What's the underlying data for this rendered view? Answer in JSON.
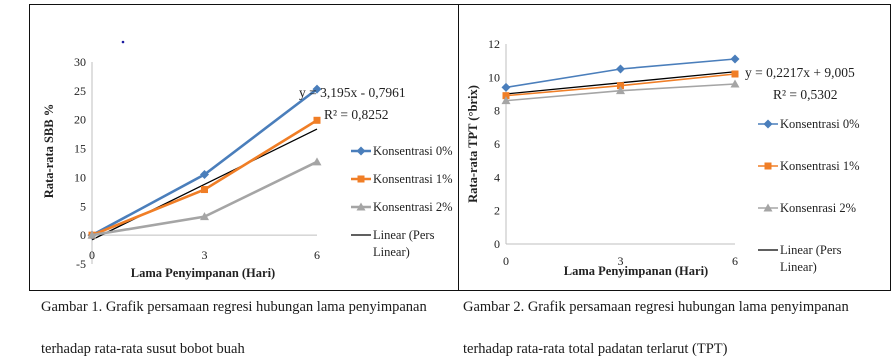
{
  "captions": {
    "fig1_line1": "Gambar 1. Grafik persamaan regresi hubungan lama penyimpanan",
    "fig1_line2": "terhadap rata-rata susut bobot buah",
    "fig2_line1": "Gambar 2. Grafik persamaan regresi hubungan lama penyimpanan",
    "fig2_line2": "terhadap rata-rata total padatan terlarut (TPT)"
  },
  "chart_data": [
    {
      "type": "line",
      "title": "",
      "xlabel": "Lama Penyimpanan (Hari)",
      "ylabel": "Rata-rata SBB %",
      "x": [
        0,
        3,
        6
      ],
      "ylim": [
        -5,
        30
      ],
      "yticks": [
        -5,
        0,
        5,
        10,
        15,
        20,
        25,
        30
      ],
      "grid": false,
      "legend_position": "right",
      "series": [
        {
          "name": "Konsentrasi 0%",
          "values": [
            0,
            10.5,
            25.3
          ],
          "color": "#4a7ebb",
          "marker": "diamond"
        },
        {
          "name": "Konsentrasi 1%",
          "values": [
            0,
            7.9,
            19.9
          ],
          "color": "#f07e26",
          "marker": "square"
        },
        {
          "name": "Konsentrasi 2%",
          "values": [
            0,
            3.2,
            12.7
          ],
          "color": "#a5a5a5",
          "marker": "triangle"
        }
      ],
      "trendline": {
        "name": "Linear (Pers Linear)",
        "name_lines": [
          "Linear (Pers",
          "Linear)"
        ],
        "slope": 3.195,
        "intercept": -0.7961,
        "color": "#000000"
      },
      "equation_text": "y = 3,195x - 0,7961",
      "r2_text": "R² = 0,8252"
    },
    {
      "type": "line",
      "title": "",
      "xlabel": "Lama Penyimpanan (Hari)",
      "ylabel": "Rata-rata TPT (°brix)",
      "x": [
        0,
        3,
        6
      ],
      "ylim": [
        0,
        12
      ],
      "yticks": [
        0,
        2,
        4,
        6,
        8,
        10,
        12
      ],
      "grid": false,
      "legend_position": "right",
      "series": [
        {
          "name": "Konsentrasi 0%",
          "values": [
            9.4,
            10.5,
            11.1
          ],
          "color": "#4a7ebb",
          "marker": "diamond"
        },
        {
          "name": "Konsentrasi 1%",
          "values": [
            8.9,
            9.5,
            10.2
          ],
          "color": "#f07e26",
          "marker": "square"
        },
        {
          "name": "Konsenrasi 2%",
          "values": [
            8.6,
            9.2,
            9.6
          ],
          "color": "#a5a5a5",
          "marker": "triangle"
        }
      ],
      "trendline": {
        "name": "Linear (Pers Linear)",
        "name_lines": [
          "Linear (Pers",
          "Linear)"
        ],
        "slope": 0.2217,
        "intercept": 9.005,
        "color": "#000000"
      },
      "equation_text": "y = 0,2217x + 9,005",
      "r2_text": "R² = 0,5302"
    }
  ]
}
